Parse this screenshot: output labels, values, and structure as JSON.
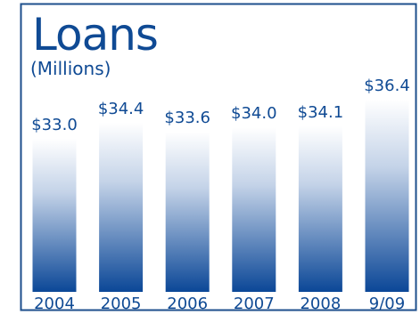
{
  "chart_data": {
    "type": "bar",
    "title": "Loans",
    "subtitle": "(Millions)",
    "xlabel": "",
    "ylabel": "",
    "categories": [
      "2004",
      "2005",
      "2006",
      "2007",
      "2008",
      "9/09"
    ],
    "values": [
      33.0,
      34.4,
      33.6,
      34.0,
      34.1,
      36.4
    ],
    "value_labels": [
      "$33.0",
      "$34.4",
      "$33.6",
      "$34.0",
      "$34.1",
      "$36.4"
    ],
    "grid": false,
    "legend": "none"
  },
  "colors": {
    "frame": "#1e4f8c",
    "text": "#0f4a94",
    "bar_top": "#ffffff",
    "bar_bottom": "#0b4797"
  }
}
